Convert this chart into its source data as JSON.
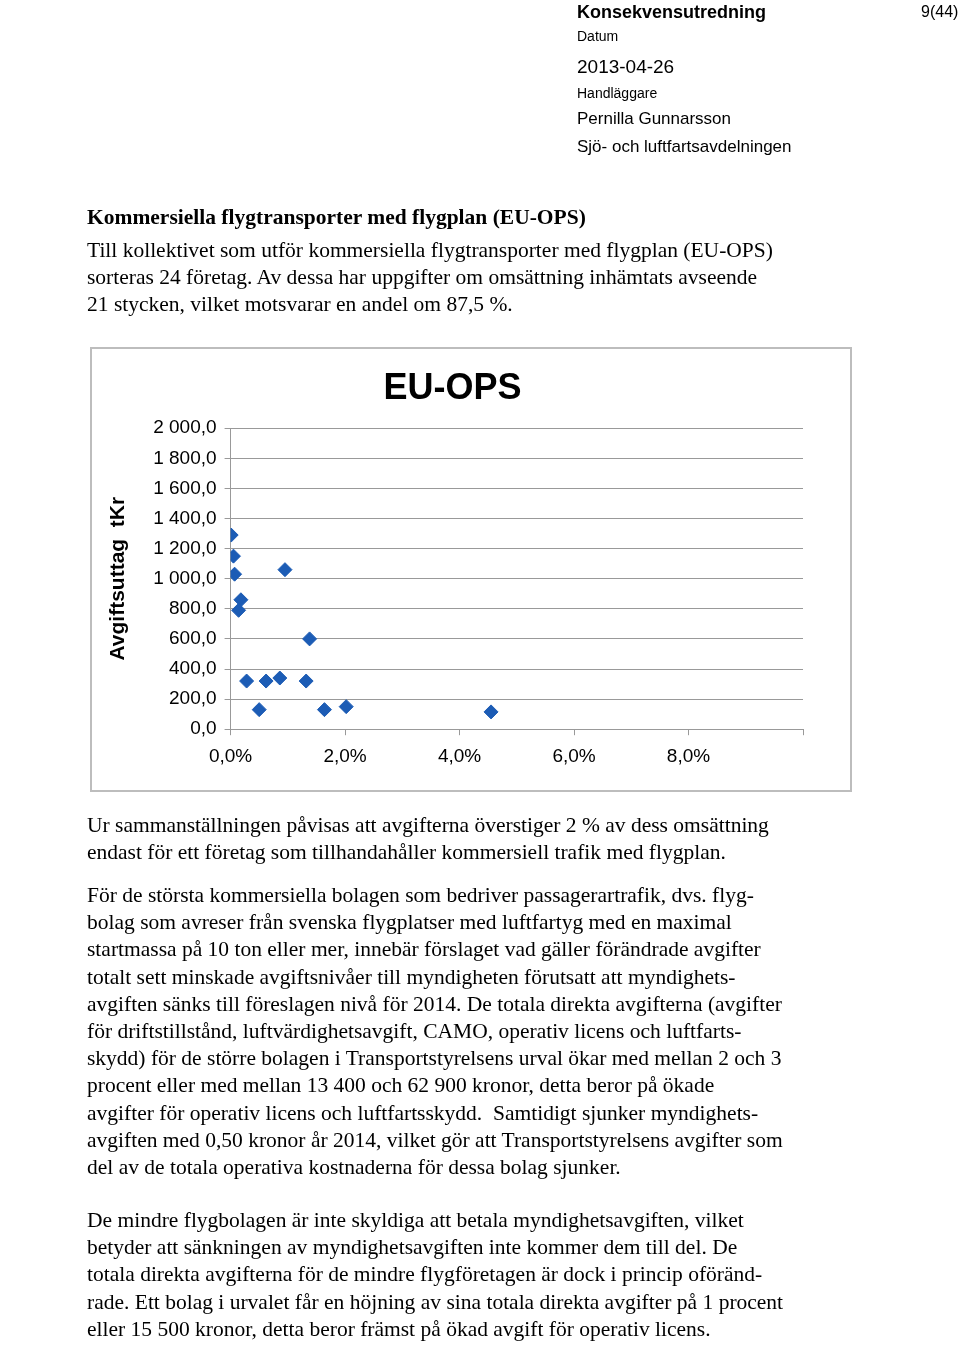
{
  "chart_data": {
    "type": "scatter",
    "title": "EU-OPS",
    "ylabel": "Avgiftsuttag  tKr",
    "x": [
      0.01,
      0.05,
      0.07,
      0.18,
      0.14,
      0.95,
      1.38,
      0.28,
      0.62,
      0.86,
      1.32,
      0.5,
      1.64,
      2.02,
      4.55
    ],
    "series": [
      {
        "color": "#1c5cb5",
        "values": [
          1290,
          1150,
          1030,
          860,
          790,
          1060,
          600,
          320,
          320,
          340,
          320,
          130,
          130,
          150,
          115
        ]
      }
    ],
    "xlim": [
      0,
      10
    ],
    "xticks": [
      {
        "value": 0,
        "label": "0,0%"
      },
      {
        "value": 2,
        "label": "2,0%"
      },
      {
        "value": 4,
        "label": "4,0%"
      },
      {
        "value": 6,
        "label": "6,0%"
      },
      {
        "value": 8,
        "label": "8,0%"
      },
      {
        "value": 10,
        "label": null
      }
    ],
    "ylim": [
      0,
      2000
    ],
    "yticks": [
      {
        "value": 0,
        "label": "0,0"
      },
      {
        "value": 200,
        "label": "200,0"
      },
      {
        "value": 400,
        "label": "400,0"
      },
      {
        "value": 600,
        "label": "600,0"
      },
      {
        "value": 800,
        "label": "800,0"
      },
      {
        "value": 1000,
        "label": "1 000,0"
      },
      {
        "value": 1200,
        "label": "1 200,0"
      },
      {
        "value": 1400,
        "label": "1 400,0"
      },
      {
        "value": 1600,
        "label": "1 600,0"
      },
      {
        "value": 1800,
        "label": "1 800,0"
      },
      {
        "value": 2000,
        "label": "2 000,0"
      }
    ],
    "grid": "y",
    "legend": false,
    "marker": "diamond",
    "annotations": [
      "Konsekvensutredning",
      "9(44)",
      "Datum",
      "2013-04-26",
      "Handläggare",
      "Pernilla Gunnarsson",
      "Sjö- och luftfartsavdelningen",
      "Kommersiella flygtransporter med flygplan (EU-OPS)",
      "Till kollektivet som utför kommersiella flygtransporter med flygplan (EU-OPS)\nsorteras 24 företag. Av dessa har uppgifter om omsättning inhämtats avseende\n21 stycken, vilket motsvarar en andel om 87,5 %.",
      "Ur sammanställningen påvisas att avgifterna överstiger 2 % av dess omsättning\nendast för ett företag som tillhandahåller kommersiell trafik med flygplan.",
      "För de största kommersiella bolagen som bedriver passagerartrafik, dvs. flyg-\nbolag som avreser från svenska flygplatser med luftfartyg med en maximal\nstartmassa på 10 ton eller mer, innebär förslaget vad gäller förändrade avgifter\ntotalt sett minskade avgiftsnivåer till myndigheten förutsatt att myndighets-\navgiften sänks till föreslagen nivå för 2014. De totala direkta avgifterna (avgifter\nför driftstillstånd, luftvärdighetsavgift, CAMO, operativ licens och luftfarts-\nskydd) för de större bolagen i Transportstyrelsens urval ökar med mellan 2 och 3\nprocent eller med mellan 13 400 och 62 900 kronor, detta beror på ökade\navgifter för operativ licens och luftfartsskydd.  Samtidigt sjunker myndighets-\navgiften med 0,50 kronor år 2014, vilket gör att Transportstyrelsens avgifter som\ndel av de totala operativa kostnaderna för dessa bolag sjunker.",
      "De mindre flygbolagen är inte skyldiga att betala myndighetsavgiften, vilket\nbetyder att sänkningen av myndighetsavgiften inte kommer dem till del. De\ntotala direkta avgifterna för de mindre flygföretagen är dock i princip oföränd-\nrade. Ett bolag i urvalet får en höjning av sina totala direkta avgifter på 1 procent\neller 15 500 kronor, detta beror främst på ökad avgift för operativ licens."
    ]
  }
}
